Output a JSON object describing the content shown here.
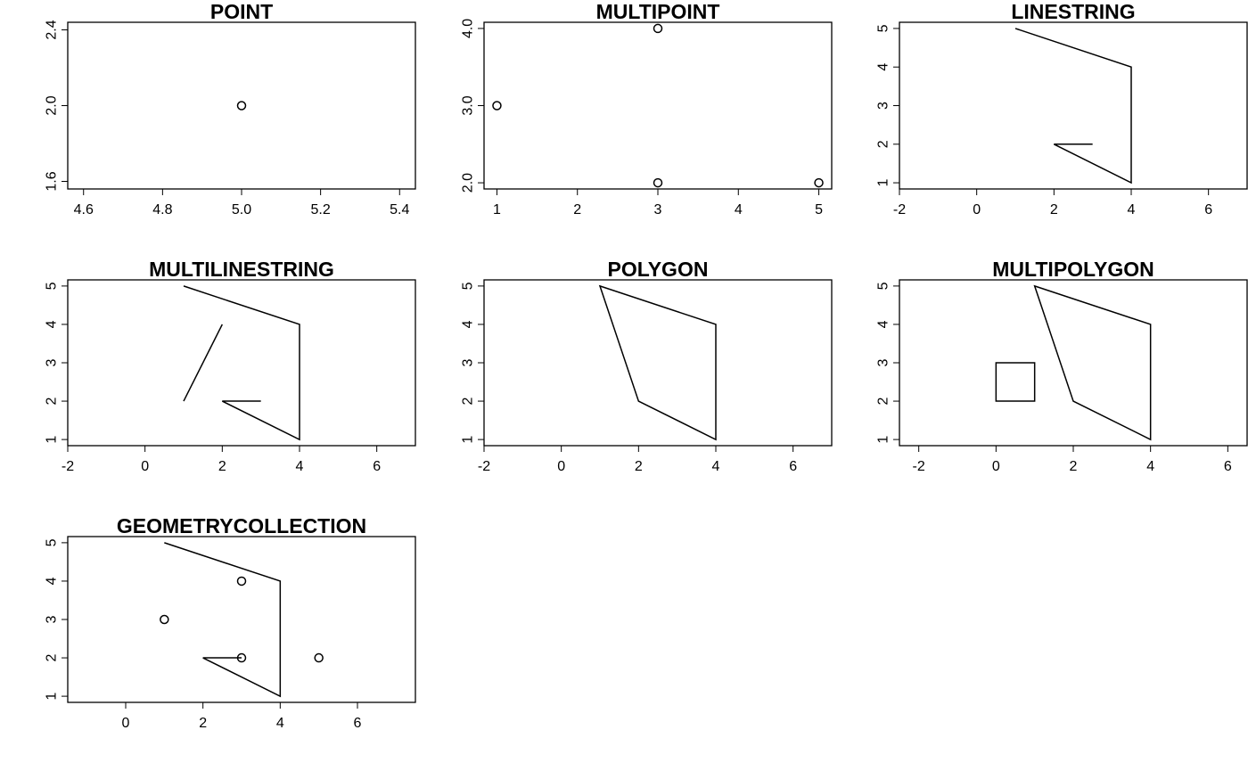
{
  "chart_data": [
    {
      "type": "scatter",
      "title": "POINT",
      "xlim": [
        4.56,
        5.44
      ],
      "ylim": [
        1.56,
        2.44
      ],
      "x_ticks": [
        4.6,
        4.8,
        5.0,
        5.2,
        5.4
      ],
      "x_tick_labels": [
        "4.6",
        "4.8",
        "5.0",
        "5.2",
        "5.4"
      ],
      "y_ticks": [
        1.6,
        2.0,
        2.4
      ],
      "y_tick_labels": [
        "1.6",
        "2.0",
        "2.4"
      ],
      "points": [
        [
          5,
          2
        ]
      ],
      "lines": [],
      "polygons": []
    },
    {
      "type": "scatter",
      "title": "MULTIPOINT",
      "xlim": [
        0.84,
        5.16
      ],
      "ylim": [
        1.92,
        4.08
      ],
      "x_ticks": [
        1,
        2,
        3,
        4,
        5
      ],
      "x_tick_labels": [
        "1",
        "2",
        "3",
        "4",
        "5"
      ],
      "y_ticks": [
        2,
        3,
        4
      ],
      "y_tick_labels": [
        "2.0",
        "3.0",
        "4.0"
      ],
      "points": [
        [
          1,
          3
        ],
        [
          3,
          4
        ],
        [
          3,
          2
        ],
        [
          5,
          2
        ]
      ],
      "lines": [],
      "polygons": []
    },
    {
      "type": "line",
      "title": "LINESTRING",
      "xlim": [
        -2,
        7
      ],
      "ylim": [
        0.84,
        5.16
      ],
      "x_ticks": [
        -2,
        0,
        2,
        4,
        6
      ],
      "x_tick_labels": [
        "-2",
        "0",
        "2",
        "4",
        "6"
      ],
      "y_ticks": [
        1,
        2,
        3,
        4,
        5
      ],
      "y_tick_labels": [
        "1",
        "2",
        "3",
        "4",
        "5"
      ],
      "points": [],
      "lines": [
        [
          [
            1,
            5
          ],
          [
            4,
            4
          ],
          [
            4,
            1
          ],
          [
            2,
            2
          ],
          [
            3,
            2
          ]
        ]
      ],
      "polygons": []
    },
    {
      "type": "line",
      "title": "MULTILINESTRING",
      "xlim": [
        -2,
        7
      ],
      "ylim": [
        0.84,
        5.16
      ],
      "x_ticks": [
        -2,
        0,
        2,
        4,
        6
      ],
      "x_tick_labels": [
        "-2",
        "0",
        "2",
        "4",
        "6"
      ],
      "y_ticks": [
        1,
        2,
        3,
        4,
        5
      ],
      "y_tick_labels": [
        "1",
        "2",
        "3",
        "4",
        "5"
      ],
      "points": [],
      "lines": [
        [
          [
            1,
            5
          ],
          [
            4,
            4
          ],
          [
            4,
            1
          ],
          [
            2,
            2
          ],
          [
            3,
            2
          ]
        ],
        [
          [
            1,
            2
          ],
          [
            2,
            4
          ]
        ]
      ],
      "polygons": []
    },
    {
      "type": "line",
      "title": "POLYGON",
      "xlim": [
        -2,
        7
      ],
      "ylim": [
        0.84,
        5.16
      ],
      "x_ticks": [
        -2,
        0,
        2,
        4,
        6
      ],
      "x_tick_labels": [
        "-2",
        "0",
        "2",
        "4",
        "6"
      ],
      "y_ticks": [
        1,
        2,
        3,
        4,
        5
      ],
      "y_tick_labels": [
        "1",
        "2",
        "3",
        "4",
        "5"
      ],
      "points": [],
      "lines": [],
      "polygons": [
        [
          [
            1,
            5
          ],
          [
            4,
            4
          ],
          [
            4,
            1
          ],
          [
            2,
            2
          ],
          [
            1,
            5
          ]
        ]
      ]
    },
    {
      "type": "line",
      "title": "MULTIPOLYGON",
      "xlim": [
        -2.5,
        6.5
      ],
      "ylim": [
        0.84,
        5.16
      ],
      "x_ticks": [
        -2,
        0,
        2,
        4,
        6
      ],
      "x_tick_labels": [
        "-2",
        "0",
        "2",
        "4",
        "6"
      ],
      "y_ticks": [
        1,
        2,
        3,
        4,
        5
      ],
      "y_tick_labels": [
        "1",
        "2",
        "3",
        "4",
        "5"
      ],
      "points": [],
      "lines": [],
      "polygons": [
        [
          [
            1,
            5
          ],
          [
            4,
            4
          ],
          [
            4,
            1
          ],
          [
            2,
            2
          ],
          [
            1,
            5
          ]
        ],
        [
          [
            0,
            2
          ],
          [
            1,
            2
          ],
          [
            1,
            3
          ],
          [
            0,
            3
          ],
          [
            0,
            2
          ]
        ]
      ]
    },
    {
      "type": "scatter",
      "title": "GEOMETRYCOLLECTION",
      "xlim": [
        -1.5,
        7.5
      ],
      "ylim": [
        0.84,
        5.16
      ],
      "x_ticks": [
        0,
        2,
        4,
        6
      ],
      "x_tick_labels": [
        "0",
        "2",
        "4",
        "6"
      ],
      "y_ticks": [
        1,
        2,
        3,
        4,
        5
      ],
      "y_tick_labels": [
        "1",
        "2",
        "3",
        "4",
        "5"
      ],
      "points": [
        [
          3,
          4
        ],
        [
          1,
          3
        ],
        [
          3,
          2
        ],
        [
          5,
          2
        ]
      ],
      "lines": [
        [
          [
            1,
            5
          ],
          [
            4,
            4
          ],
          [
            4,
            1
          ],
          [
            2,
            2
          ],
          [
            3,
            2
          ]
        ]
      ],
      "polygons": []
    }
  ]
}
